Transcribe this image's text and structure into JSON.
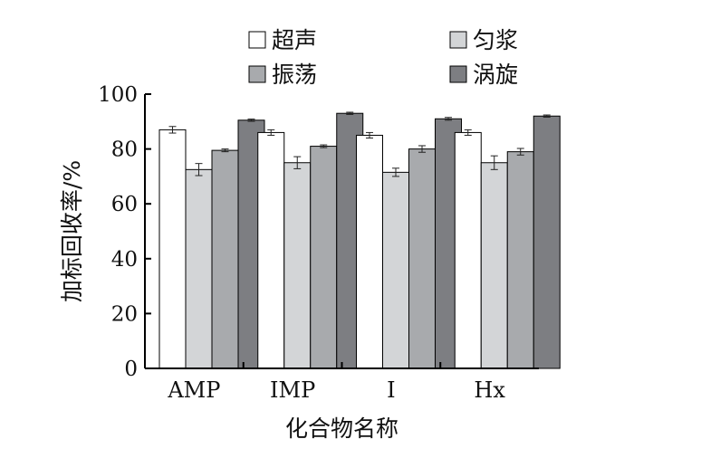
{
  "chart_data": {
    "type": "bar",
    "title": "",
    "xlabel": "化合物名称",
    "ylabel": "加标回收率/%",
    "ylim": [
      0,
      100
    ],
    "yticks": [
      0,
      20,
      40,
      60,
      80,
      100
    ],
    "grid": false,
    "legend_position": "top",
    "categories": [
      "AMP",
      "IMP",
      "I",
      "Hx"
    ],
    "series": [
      {
        "name": "超声",
        "color": "#ffffff",
        "values": [
          87,
          86,
          85,
          86
        ],
        "errors": [
          1.2,
          1.0,
          1.0,
          1.0
        ]
      },
      {
        "name": "匀浆",
        "color": "#d3d5d7",
        "values": [
          72.5,
          75,
          71.5,
          75
        ],
        "errors": [
          2.2,
          2.2,
          1.5,
          2.5
        ]
      },
      {
        "name": "振荡",
        "color": "#a8aaad",
        "values": [
          79.5,
          81,
          80,
          79
        ],
        "errors": [
          0.5,
          0.5,
          1.2,
          1.2
        ]
      },
      {
        "name": "涡旋",
        "color": "#7d7e82",
        "values": [
          90.5,
          93,
          91,
          92
        ],
        "errors": [
          0.4,
          0.4,
          0.5,
          0.4
        ]
      }
    ]
  }
}
